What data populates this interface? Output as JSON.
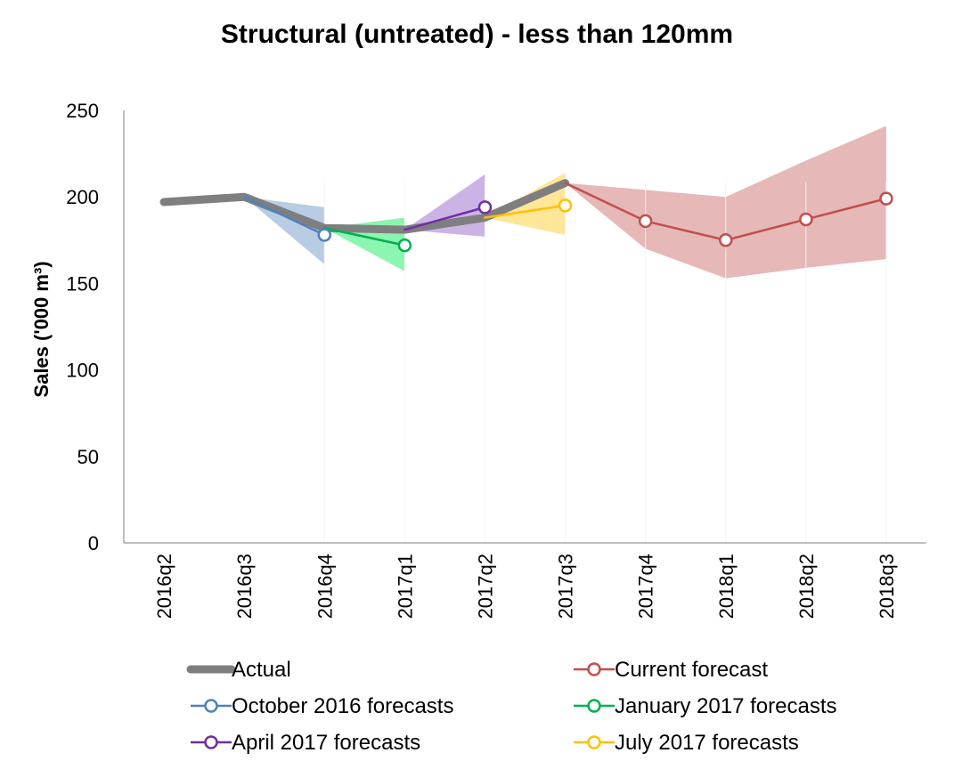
{
  "chart_data": {
    "type": "line",
    "title": "Structural (untreated) - less than 120mm",
    "xlabel": "",
    "ylabel": "Sales ('000 m³)",
    "ylim": [
      0,
      250
    ],
    "yticks": [
      0,
      50,
      100,
      150,
      200,
      250
    ],
    "categories": [
      "2016q2",
      "2016q3",
      "2016q4",
      "2017q1",
      "2017q2",
      "2017q3",
      "2017q4",
      "2018q1",
      "2018q2",
      "2018q3"
    ],
    "grid": false,
    "legend_position": "bottom",
    "series": [
      {
        "name": "Actual",
        "color": "#7f7f7f",
        "style": "thick-line",
        "values": [
          197,
          200,
          182,
          181,
          188,
          208,
          null,
          null,
          null,
          null
        ]
      },
      {
        "name": "Current forecast",
        "color": "#c0504d",
        "band_color": "#e6b8b7",
        "style": "line-open-markers",
        "values": [
          null,
          null,
          null,
          null,
          null,
          208,
          186,
          175,
          187,
          199
        ],
        "band_low": [
          null,
          null,
          null,
          null,
          null,
          208,
          170,
          153,
          159,
          164
        ],
        "band_high": [
          null,
          null,
          null,
          null,
          null,
          208,
          204,
          200,
          221,
          241
        ],
        "markers_from_index": 6
      },
      {
        "name": "October 2016 forecasts",
        "color": "#4f81bd",
        "band_color": "#b8cce4",
        "style": "line-open-markers",
        "values": [
          null,
          200,
          178,
          null,
          null,
          null,
          null,
          null,
          null,
          null
        ],
        "band_low": [
          null,
          200,
          161,
          null,
          null,
          null,
          null,
          null,
          null,
          null
        ],
        "band_high": [
          null,
          200,
          194,
          null,
          null,
          null,
          null,
          null,
          null,
          null
        ],
        "markers_from_index": 2
      },
      {
        "name": "January 2017 forecasts",
        "color": "#00b050",
        "band_color": "#8cf5b0",
        "style": "line-open-markers",
        "values": [
          null,
          null,
          182,
          172,
          null,
          null,
          null,
          null,
          null,
          null
        ],
        "band_low": [
          null,
          null,
          182,
          157,
          null,
          null,
          null,
          null,
          null,
          null
        ],
        "band_high": [
          null,
          null,
          182,
          188,
          null,
          null,
          null,
          null,
          null,
          null
        ],
        "markers_from_index": 3
      },
      {
        "name": "April 2017 forecasts",
        "color": "#7030a0",
        "band_color": "#ccb3e6",
        "style": "line-open-markers",
        "values": [
          null,
          null,
          null,
          181,
          194,
          null,
          null,
          null,
          null,
          null
        ],
        "band_low": [
          null,
          null,
          null,
          181,
          177,
          null,
          null,
          null,
          null,
          null
        ],
        "band_high": [
          null,
          null,
          null,
          181,
          213,
          null,
          null,
          null,
          null,
          null
        ],
        "markers_from_index": 4
      },
      {
        "name": "July 2017 forecasts",
        "color": "#ffc000",
        "band_color": "#ffe699",
        "style": "line-open-markers",
        "values": [
          null,
          null,
          null,
          null,
          188,
          195,
          null,
          null,
          null,
          null
        ],
        "band_low": [
          null,
          null,
          null,
          null,
          188,
          178,
          null,
          null,
          null,
          null
        ],
        "band_high": [
          null,
          null,
          null,
          null,
          188,
          214,
          null,
          null,
          null,
          null
        ],
        "markers_from_index": 5
      }
    ]
  }
}
